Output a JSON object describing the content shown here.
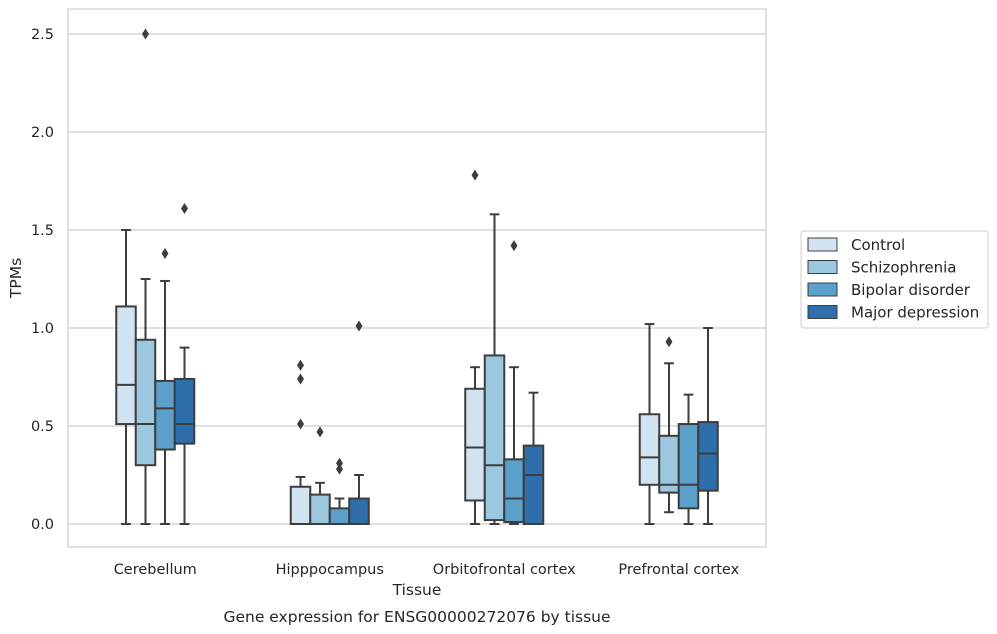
{
  "chart_data": {
    "type": "box",
    "xlabel": "Tissue",
    "ylabel": "TPMs",
    "caption": "Gene expression for ENSG00000272076 by tissue",
    "ylim": [
      -0.12,
      2.62
    ],
    "yticks": [
      0.0,
      0.5,
      1.0,
      1.5,
      2.0,
      2.5
    ],
    "ytick_labels": [
      "0.0",
      "0.5",
      "1.0",
      "1.5",
      "2.0",
      "2.5"
    ],
    "grid": "horizontal",
    "legend_position": "right",
    "categories": [
      "Cerebellum",
      "Hipppocampus",
      "Orbitofrontal cortex",
      "Prefrontal cortex"
    ],
    "series": [
      {
        "name": "Control",
        "color": "#d1e2f1",
        "boxes": [
          {
            "q1": 0.51,
            "median": 0.71,
            "q3": 1.11,
            "whisker_low": 0.0,
            "whisker_high": 1.5,
            "outliers": []
          },
          {
            "q1": 0.0,
            "median": 0.0,
            "q3": 0.19,
            "whisker_low": 0.0,
            "whisker_high": 0.24,
            "outliers": [
              0.51,
              0.74,
              0.81
            ]
          },
          {
            "q1": 0.12,
            "median": 0.39,
            "q3": 0.69,
            "whisker_low": 0.0,
            "whisker_high": 0.8,
            "outliers": [
              1.78
            ]
          },
          {
            "q1": 0.2,
            "median": 0.34,
            "q3": 0.56,
            "whisker_low": 0.0,
            "whisker_high": 1.02,
            "outliers": []
          }
        ]
      },
      {
        "name": "Schizophrenia",
        "color": "#9bc7df",
        "boxes": [
          {
            "q1": 0.3,
            "median": 0.51,
            "q3": 0.94,
            "whisker_low": 0.0,
            "whisker_high": 1.25,
            "outliers": [
              2.5
            ]
          },
          {
            "q1": 0.0,
            "median": 0.0,
            "q3": 0.15,
            "whisker_low": 0.0,
            "whisker_high": 0.21,
            "outliers": [
              0.47
            ]
          },
          {
            "q1": 0.02,
            "median": 0.3,
            "q3": 0.86,
            "whisker_low": 0.0,
            "whisker_high": 1.58,
            "outliers": []
          },
          {
            "q1": 0.16,
            "median": 0.2,
            "q3": 0.45,
            "whisker_low": 0.06,
            "whisker_high": 0.82,
            "outliers": [
              0.93
            ]
          }
        ]
      },
      {
        "name": "Bipolar disorder",
        "color": "#5b9fcb",
        "boxes": [
          {
            "q1": 0.38,
            "median": 0.59,
            "q3": 0.73,
            "whisker_low": 0.0,
            "whisker_high": 1.24,
            "outliers": [
              1.38
            ]
          },
          {
            "q1": 0.0,
            "median": 0.0,
            "q3": 0.08,
            "whisker_low": 0.0,
            "whisker_high": 0.13,
            "outliers": [
              0.28,
              0.31
            ]
          },
          {
            "q1": 0.01,
            "median": 0.13,
            "q3": 0.33,
            "whisker_low": 0.0,
            "whisker_high": 0.8,
            "outliers": [
              1.42
            ]
          },
          {
            "q1": 0.08,
            "median": 0.2,
            "q3": 0.51,
            "whisker_low": 0.0,
            "whisker_high": 0.66,
            "outliers": []
          }
        ]
      },
      {
        "name": "Major depression",
        "color": "#2e6eaa",
        "boxes": [
          {
            "q1": 0.41,
            "median": 0.51,
            "q3": 0.74,
            "whisker_low": 0.0,
            "whisker_high": 0.9,
            "outliers": [
              1.61
            ]
          },
          {
            "q1": 0.0,
            "median": 0.0,
            "q3": 0.13,
            "whisker_low": 0.0,
            "whisker_high": 0.25,
            "outliers": [
              1.01
            ]
          },
          {
            "q1": 0.0,
            "median": 0.25,
            "q3": 0.4,
            "whisker_low": 0.0,
            "whisker_high": 0.67,
            "outliers": []
          },
          {
            "q1": 0.17,
            "median": 0.36,
            "q3": 0.52,
            "whisker_low": 0.0,
            "whisker_high": 1.0,
            "outliers": []
          }
        ]
      }
    ]
  }
}
